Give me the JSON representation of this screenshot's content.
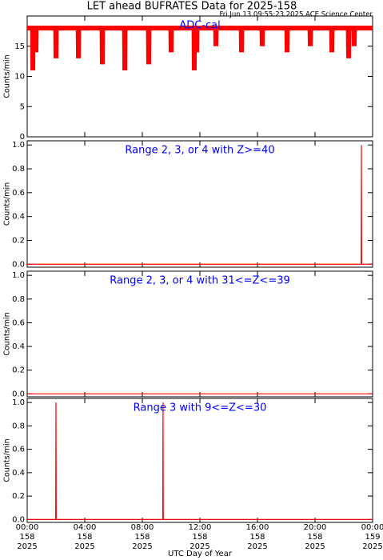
{
  "chart_data": [
    {
      "type": "line",
      "title": "LET ahead BUFRATES Data for 2025-158",
      "subtitle": "Fri Jun 13 09:55:23 2025 ACE Science Center",
      "annotation": "ADC-cal",
      "ylabel": "Counts/min",
      "color": "#ff0000",
      "x": [
        0,
        0.37,
        0.39,
        0.41,
        0.59,
        0.61,
        0.63,
        1.98,
        2.0,
        2.02,
        3.54,
        3.56,
        3.58,
        5.2,
        5.22,
        5.24,
        6.76,
        6.78,
        6.8,
        8.42,
        8.44,
        8.46,
        9.98,
        10.0,
        10.02,
        11.59,
        11.61,
        11.63,
        11.76,
        11.78,
        11.8,
        13.09,
        13.11,
        13.13,
        14.87,
        14.89,
        14.91,
        16.31,
        16.33,
        16.35,
        18.04,
        18.06,
        18.08,
        19.65,
        19.67,
        19.69,
        21.15,
        21.17,
        21.19,
        22.31,
        22.33,
        22.35,
        22.7,
        22.72,
        22.74,
        24
      ],
      "values": [
        18,
        18,
        11,
        18,
        18,
        14,
        18,
        18,
        13,
        18,
        18,
        13,
        18,
        18,
        12,
        18,
        18,
        11,
        18,
        18,
        12,
        18,
        18,
        14,
        18,
        18,
        11,
        18,
        18,
        14,
        18,
        18,
        15,
        18,
        18,
        14,
        18,
        18,
        15,
        18,
        18,
        14,
        18,
        18,
        15,
        18,
        18,
        14,
        18,
        18,
        13,
        18,
        18,
        15,
        18,
        18
      ],
      "xlim": [
        0,
        24
      ],
      "ylim": [
        0,
        20
      ],
      "yticks": [
        0,
        5,
        10,
        15
      ]
    },
    {
      "type": "line",
      "annotation": "Range 2, 3, or 4 with Z>=40",
      "ylabel": "Counts/min",
      "color": "#ff0000",
      "x": [
        0,
        23.2,
        23.22,
        23.24,
        24
      ],
      "values": [
        0,
        0,
        1,
        0,
        0
      ],
      "xlim": [
        0,
        24
      ],
      "ylim": [
        -0.025,
        1.035
      ],
      "yticks": [
        {
          "value": 0,
          "label": "0.0"
        },
        {
          "value": 0.2,
          "label": "0.2"
        },
        {
          "value": 0.4,
          "label": "0.4"
        },
        {
          "value": 0.6,
          "label": "0.6"
        },
        {
          "value": 0.8,
          "label": "0.8"
        },
        {
          "value": 1,
          "label": "1.0"
        }
      ]
    },
    {
      "type": "line",
      "annotation": "Range 2, 3, or 4 with 31<=Z<=39",
      "ylabel": "Counts/min",
      "color": "#ff0000",
      "x": [
        0,
        24
      ],
      "values": [
        0,
        0
      ],
      "xlim": [
        0,
        24
      ],
      "ylim": [
        -0.025,
        1.035
      ],
      "yticks": [
        {
          "value": 0,
          "label": "0.0"
        },
        {
          "value": 0.2,
          "label": "0.2"
        },
        {
          "value": 0.4,
          "label": "0.4"
        },
        {
          "value": 0.6,
          "label": "0.6"
        },
        {
          "value": 0.8,
          "label": "0.8"
        },
        {
          "value": 1,
          "label": "1.0"
        }
      ]
    },
    {
      "type": "line",
      "annotation": "Range 3 with 9<=Z<=30",
      "ylabel": "Counts/min",
      "xlabel": "UTC Day of Year",
      "color": "#ff0000",
      "x": [
        0,
        1.98,
        2.0,
        2.02,
        9.42,
        9.44,
        9.46,
        24
      ],
      "values": [
        0,
        0,
        1,
        0,
        0,
        1,
        0,
        0
      ],
      "xlim": [
        0,
        24
      ],
      "ylim": [
        -0.025,
        1.035
      ],
      "yticks": [
        {
          "value": 0,
          "label": "0.0"
        },
        {
          "value": 0.2,
          "label": "0.2"
        },
        {
          "value": 0.4,
          "label": "0.4"
        },
        {
          "value": 0.6,
          "label": "0.6"
        },
        {
          "value": 0.8,
          "label": "0.8"
        },
        {
          "value": 1,
          "label": "1.0"
        }
      ],
      "xticks": [
        {
          "value": 0,
          "label": "00:00",
          "day": "158",
          "year": "2025"
        },
        {
          "value": 4,
          "label": "04:00",
          "day": "158",
          "year": "2025"
        },
        {
          "value": 8,
          "label": "08:00",
          "day": "158",
          "year": "2025"
        },
        {
          "value": 12,
          "label": "12:00",
          "day": "158",
          "year": "2025"
        },
        {
          "value": 16,
          "label": "16:00",
          "day": "158",
          "year": "2025"
        },
        {
          "value": 20,
          "label": "20:00",
          "day": "158",
          "year": "2025"
        },
        {
          "value": 24,
          "label": "00:00",
          "day": "159",
          "year": "2025"
        }
      ]
    }
  ]
}
